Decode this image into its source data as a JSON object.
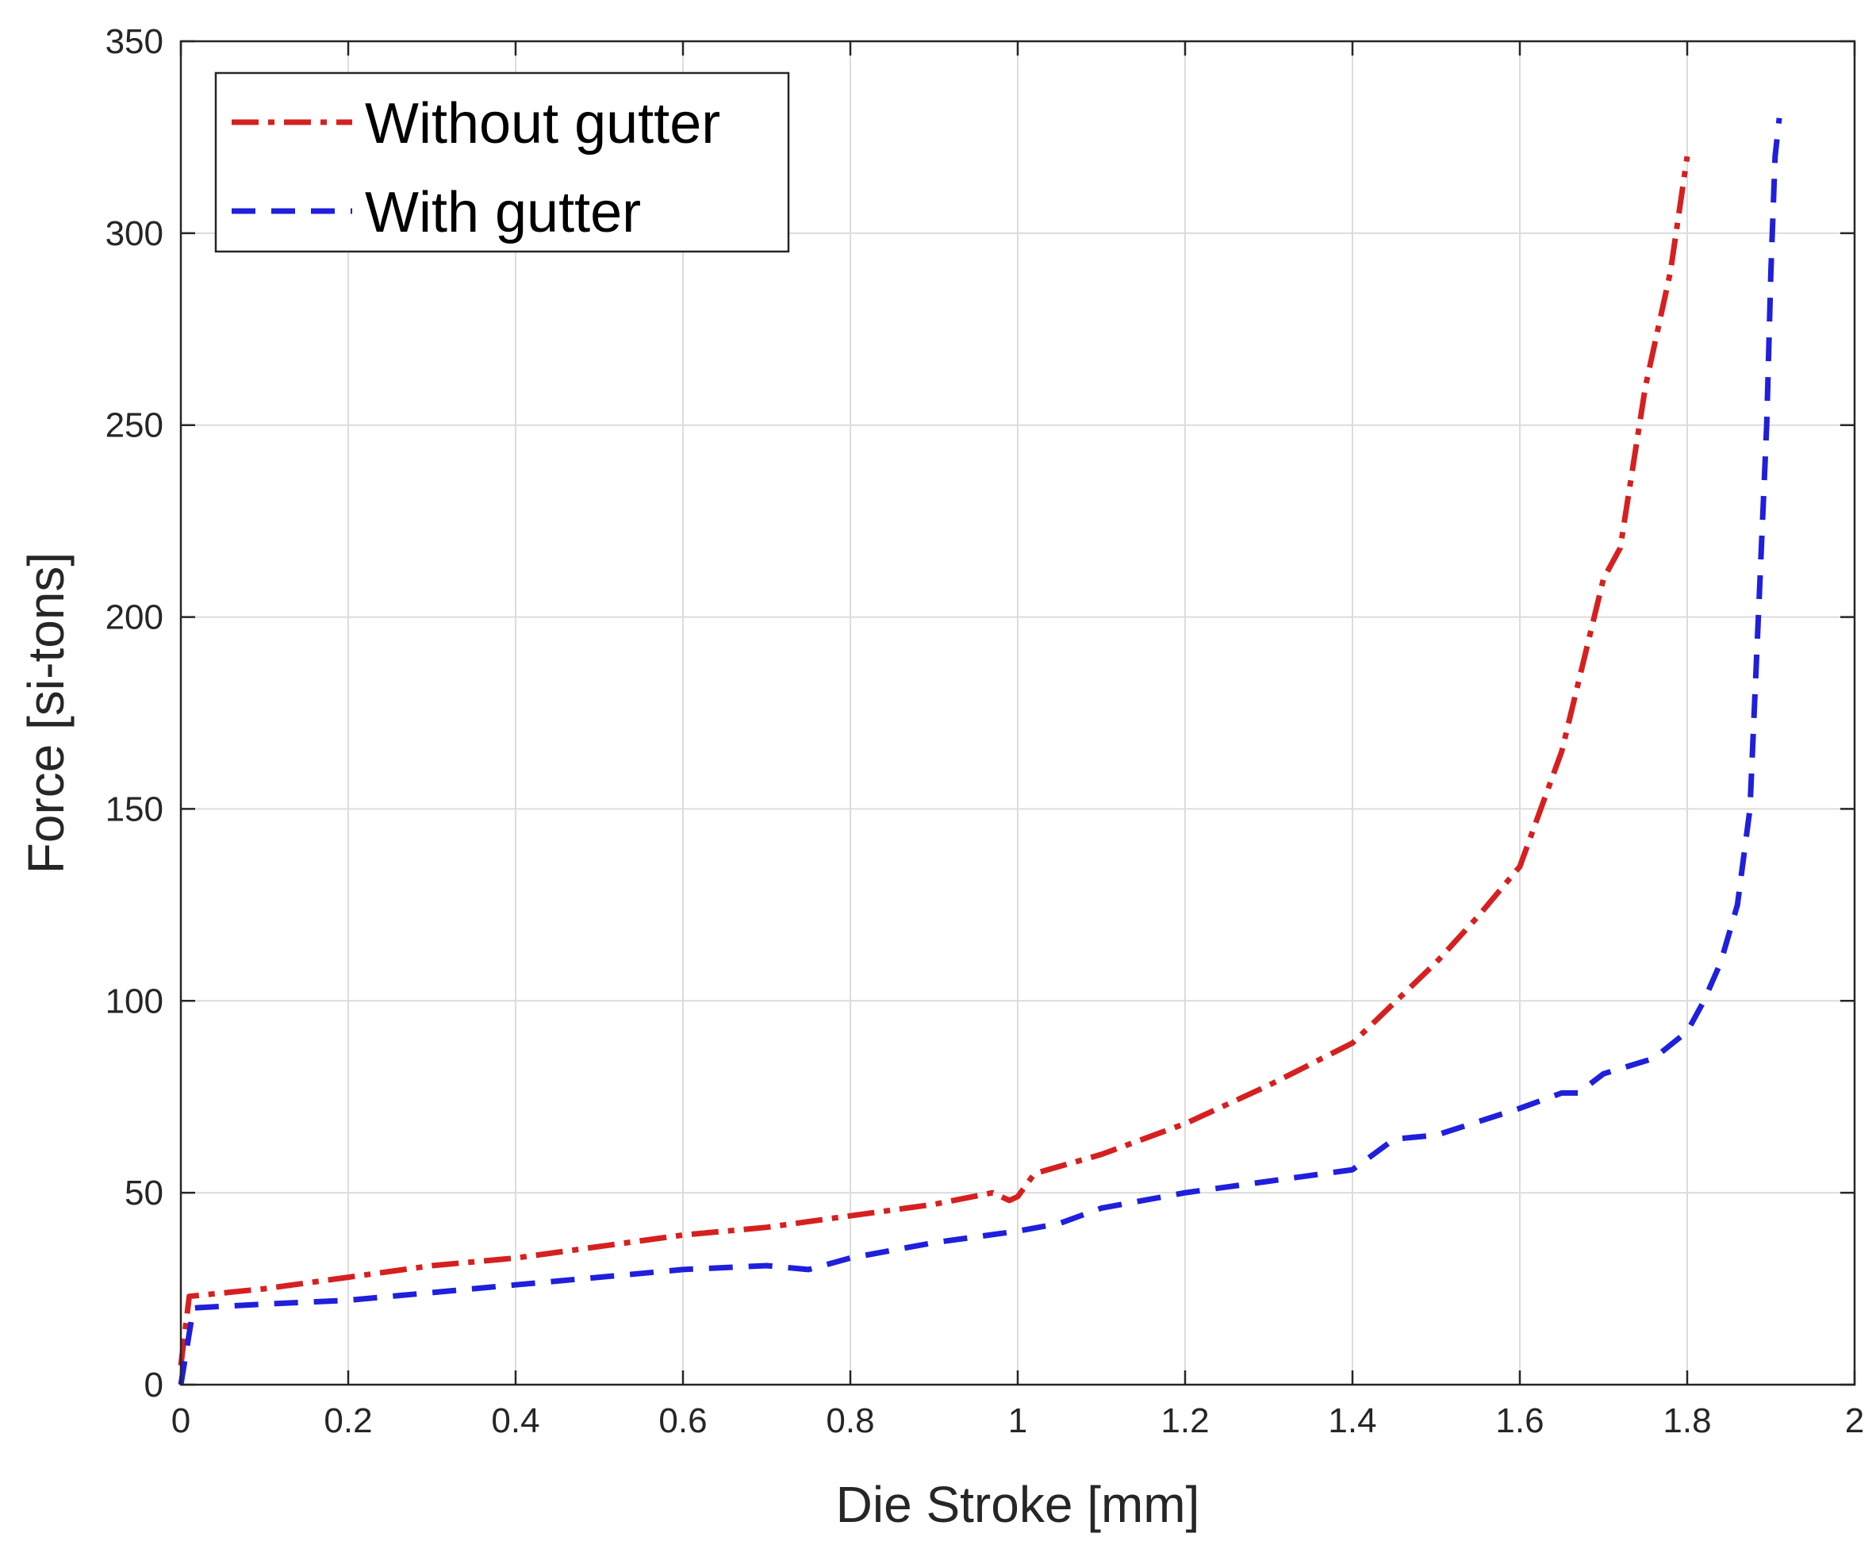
{
  "chart_data": {
    "type": "line",
    "title": "",
    "xlabel": "Die Stroke [mm]",
    "ylabel": "Force [si-tons]",
    "xlim": [
      0,
      2
    ],
    "ylim": [
      0,
      350
    ],
    "xticks": [
      0,
      0.2,
      0.4,
      0.6,
      0.8,
      1,
      1.2,
      1.4,
      1.6,
      1.8,
      2
    ],
    "xtick_labels": [
      "0",
      "0.2",
      "0.4",
      "0.6",
      "0.8",
      "1",
      "1.2",
      "1.4",
      "1.6",
      "1.8",
      "2"
    ],
    "yticks": [
      0,
      50,
      100,
      150,
      200,
      250,
      300,
      350
    ],
    "ytick_labels": [
      "0",
      "50",
      "100",
      "150",
      "200",
      "250",
      "300",
      "350"
    ],
    "grid": true,
    "legend_position": "top-left",
    "series": [
      {
        "name": "Without gutter",
        "color": "#d62020",
        "style": "dash-dot",
        "x": [
          0,
          0.01,
          0.1,
          0.2,
          0.3,
          0.4,
          0.5,
          0.6,
          0.7,
          0.8,
          0.9,
          0.97,
          0.99,
          1.0,
          1.02,
          1.1,
          1.2,
          1.3,
          1.4,
          1.5,
          1.55,
          1.6,
          1.65,
          1.7,
          1.72,
          1.75,
          1.78,
          1.8
        ],
        "y": [
          5,
          23,
          25,
          28,
          31,
          33,
          36,
          39,
          41,
          44,
          47,
          50,
          48,
          49,
          55,
          60,
          68,
          78,
          89,
          110,
          122,
          135,
          165,
          210,
          218,
          260,
          290,
          320
        ]
      },
      {
        "name": "With gutter",
        "color": "#1f1fdc",
        "style": "dashed",
        "x": [
          0,
          0.015,
          0.1,
          0.2,
          0.3,
          0.4,
          0.5,
          0.6,
          0.7,
          0.75,
          0.8,
          0.9,
          1.0,
          1.05,
          1.1,
          1.2,
          1.3,
          1.4,
          1.45,
          1.5,
          1.6,
          1.65,
          1.67,
          1.7,
          1.73,
          1.76,
          1.8,
          1.82,
          1.84,
          1.86,
          1.875,
          1.885,
          1.895,
          1.9,
          1.905,
          1.91
        ],
        "y": [
          0,
          20,
          21,
          22,
          24,
          26,
          28,
          30,
          31,
          30,
          33,
          37,
          40,
          42,
          46,
          50,
          53,
          56,
          64,
          65,
          72,
          76,
          76,
          81,
          83,
          85,
          92,
          100,
          110,
          125,
          150,
          200,
          250,
          290,
          320,
          330
        ]
      }
    ]
  }
}
